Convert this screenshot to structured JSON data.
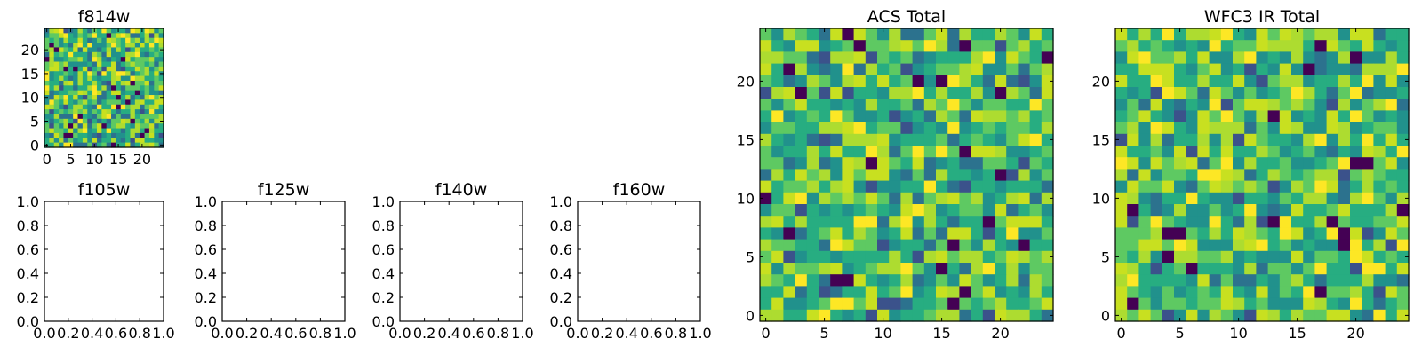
{
  "chart_data": [
    {
      "type": "heatmap",
      "title": "f814w",
      "grid_size": 25,
      "colormap": "viridis",
      "xticks": [
        0,
        5,
        10,
        15,
        20
      ],
      "yticks": [
        0,
        5,
        10,
        15,
        20
      ],
      "xlim": [
        -0.5,
        24.5
      ],
      "ylim": [
        -0.5,
        24.5
      ],
      "values_description": "random noise image, values mostly in upper-middle of colormap with scattered low (dark purple) pixels"
    },
    {
      "type": "empty",
      "title": "f105w",
      "xticks": [
        "0.0",
        "0.2",
        "0.4",
        "0.6",
        "0.8",
        "1.0"
      ],
      "yticks": [
        "0.0",
        "0.2",
        "0.4",
        "0.6",
        "0.8",
        "1.0"
      ],
      "xlim": [
        0,
        1
      ],
      "ylim": [
        0,
        1
      ]
    },
    {
      "type": "empty",
      "title": "f125w",
      "xticks": [
        "0.0",
        "0.2",
        "0.4",
        "0.6",
        "0.8",
        "1.0"
      ],
      "yticks": [
        "0.0",
        "0.2",
        "0.4",
        "0.6",
        "0.8",
        "1.0"
      ],
      "xlim": [
        0,
        1
      ],
      "ylim": [
        0,
        1
      ]
    },
    {
      "type": "empty",
      "title": "f140w",
      "xticks": [
        "0.0",
        "0.2",
        "0.4",
        "0.6",
        "0.8",
        "1.0"
      ],
      "yticks": [
        "0.0",
        "0.2",
        "0.4",
        "0.6",
        "0.8",
        "1.0"
      ],
      "xlim": [
        0,
        1
      ],
      "ylim": [
        0,
        1
      ]
    },
    {
      "type": "empty",
      "title": "f160w",
      "xticks": [
        "0.0",
        "0.2",
        "0.4",
        "0.6",
        "0.8",
        "1.0"
      ],
      "yticks": [
        "0.0",
        "0.2",
        "0.4",
        "0.6",
        "0.8",
        "1.0"
      ],
      "xlim": [
        0,
        1
      ],
      "ylim": [
        0,
        1
      ]
    },
    {
      "type": "heatmap",
      "title": "ACS Total",
      "grid_size": 25,
      "colormap": "viridis",
      "xticks": [
        0,
        5,
        10,
        15,
        20
      ],
      "yticks": [
        0,
        5,
        10,
        15,
        20
      ],
      "xlim": [
        -0.5,
        24.5
      ],
      "ylim": [
        -0.5,
        24.5
      ]
    },
    {
      "type": "heatmap",
      "title": "WFC3 IR Total",
      "grid_size": 25,
      "colormap": "viridis",
      "xticks": [
        0,
        5,
        10,
        15,
        20
      ],
      "yticks": [
        0,
        5,
        10,
        15,
        20
      ],
      "xlim": [
        -0.5,
        24.5
      ],
      "ylim": [
        -0.5,
        24.5
      ]
    }
  ]
}
